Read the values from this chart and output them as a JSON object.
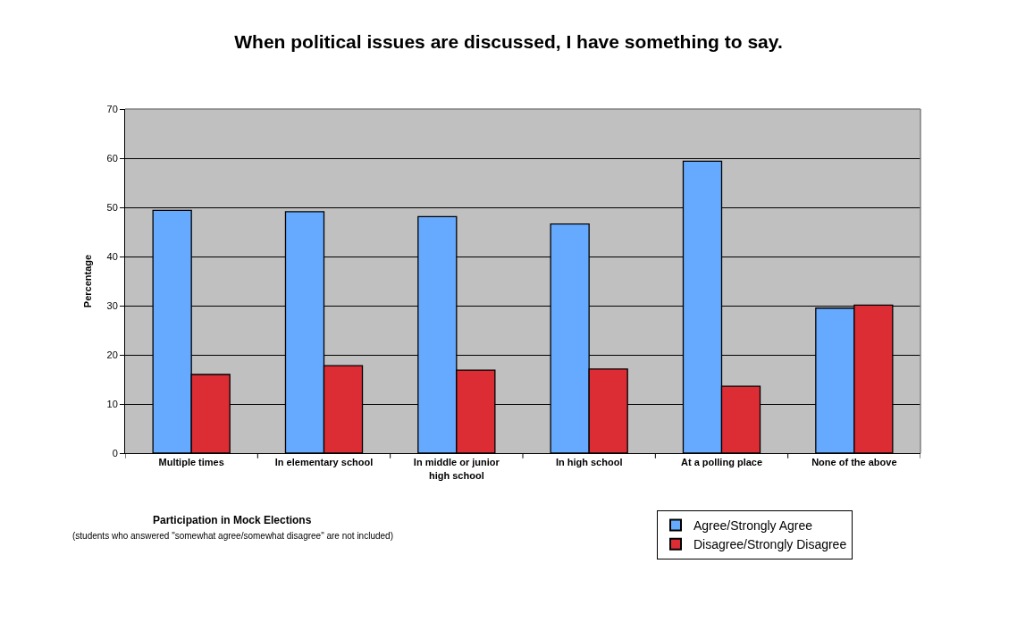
{
  "chart_data": {
    "type": "bar",
    "title": "When political issues are discussed, I have something to say.",
    "xlabel": "Participation in Mock Elections",
    "ylabel": "Percentage",
    "annotations": [
      "(students who answered \"somewhat agree/somewhat disagree\" are not included)"
    ],
    "categories": [
      "Multiple times",
      "In elementary school",
      "In middle or junior high school",
      "In high school",
      "At a polling place",
      "None of the above"
    ],
    "series": [
      {
        "name": "Agree/Strongly Agree",
        "color": "#66aaff",
        "values": [
          49.4,
          49.1,
          48.1,
          46.6,
          59.4,
          29.5
        ]
      },
      {
        "name": "Disagree/Strongly Disagree",
        "color": "#dc2c34",
        "values": [
          16.0,
          17.8,
          16.9,
          17.1,
          13.6,
          30.1
        ]
      }
    ],
    "ylim": [
      0,
      70
    ],
    "yticks": [
      0,
      10,
      20,
      30,
      40,
      50,
      60,
      70
    ],
    "grid": "y",
    "legend": "bottom right"
  }
}
